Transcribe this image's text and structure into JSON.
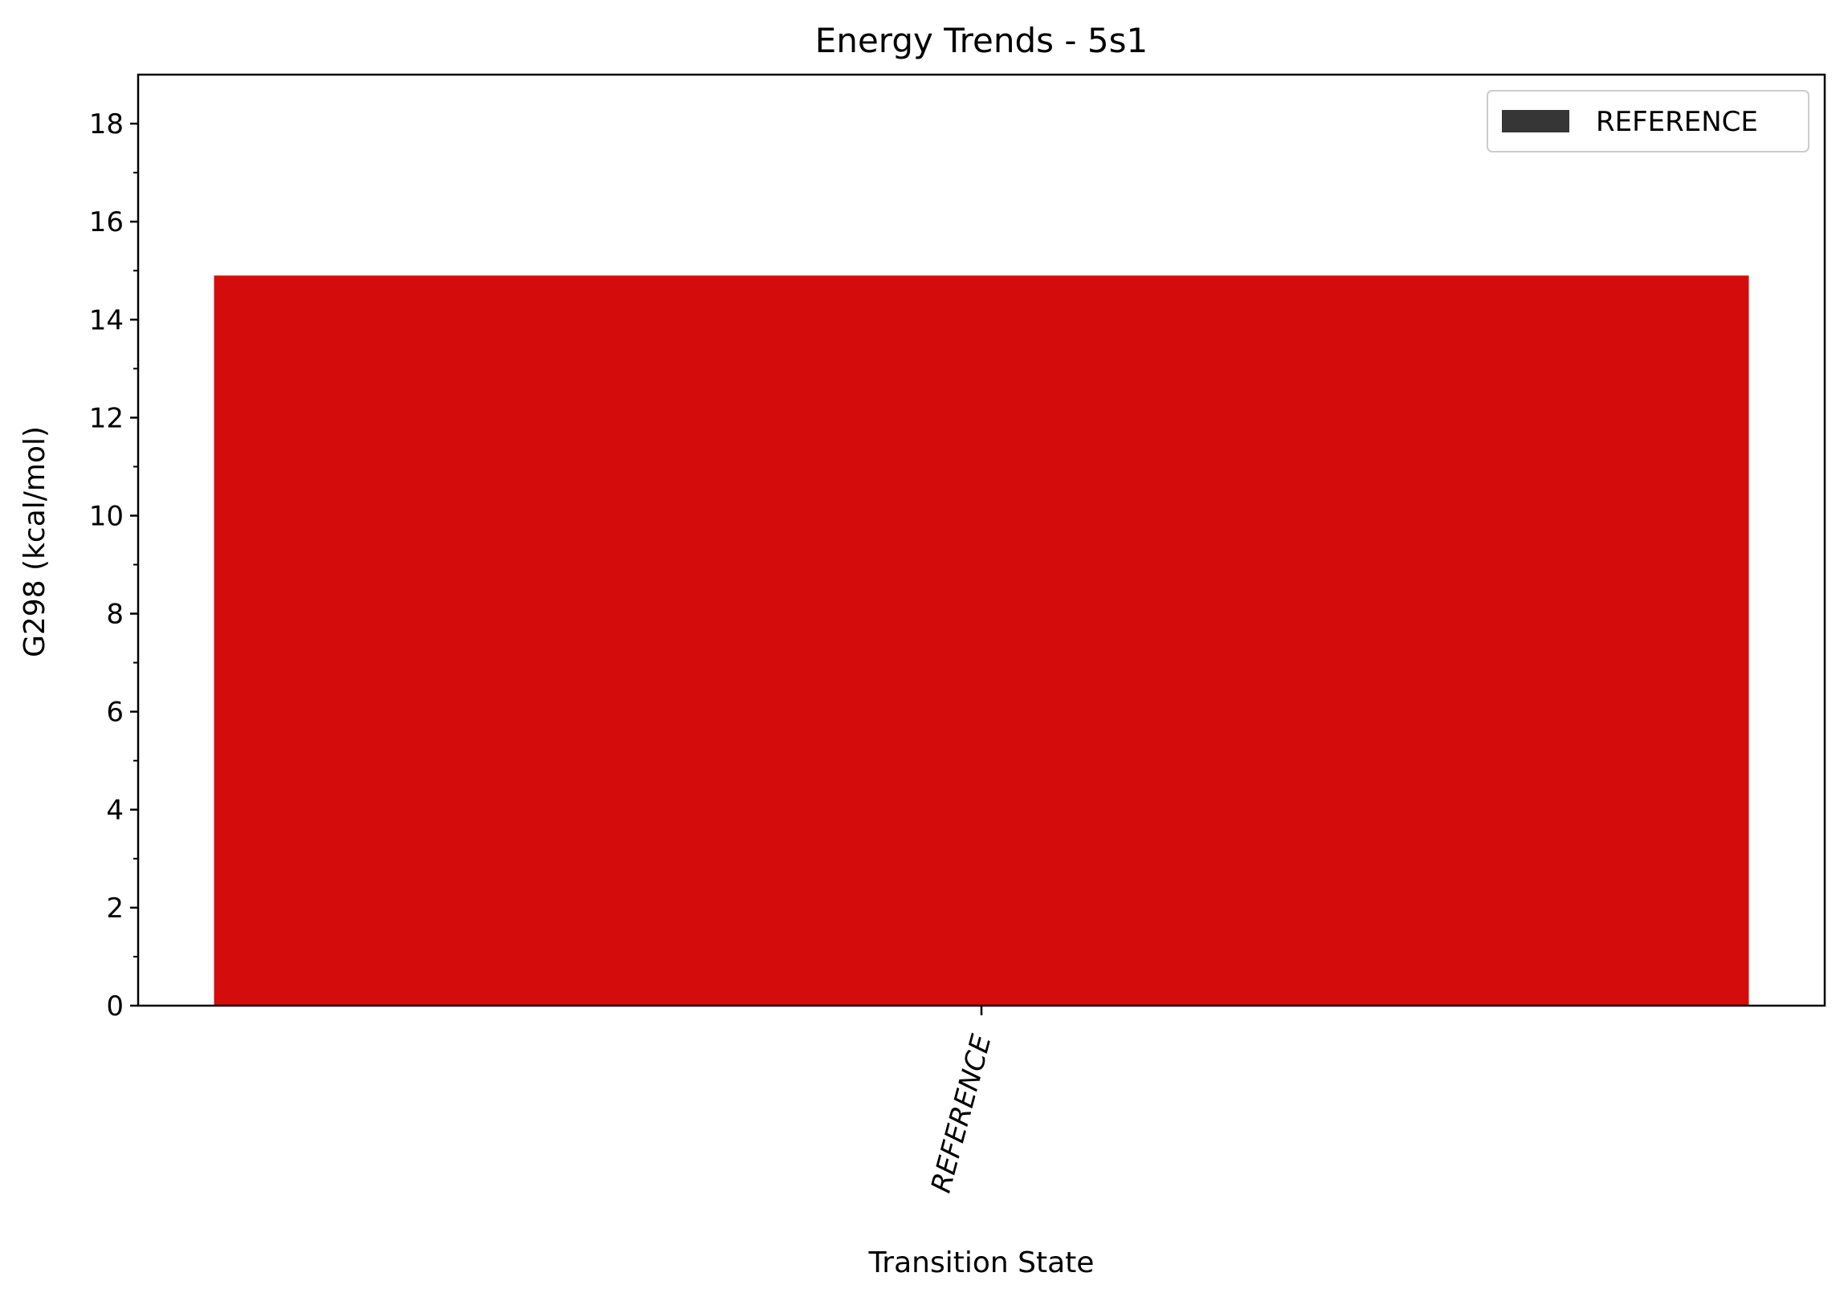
{
  "chart_data": {
    "type": "bar",
    "title": "Energy Trends - 5s1",
    "xlabel": "Transition State",
    "ylabel": "G298 (kcal/mol)",
    "categories": [
      "REFERENCE"
    ],
    "series": [
      {
        "name": "REFERENCE",
        "values": [
          14.9
        ],
        "color": "#d40c0c"
      }
    ],
    "ylim": [
      0,
      19
    ],
    "yticks": [
      0,
      2,
      4,
      6,
      8,
      10,
      12,
      14,
      16,
      18
    ],
    "y_minor_step": 1,
    "x_tick_rotation": -75,
    "legend": {
      "position": "top-right",
      "entries": [
        {
          "label": "REFERENCE",
          "color": "#363636"
        }
      ]
    },
    "grid": false
  }
}
